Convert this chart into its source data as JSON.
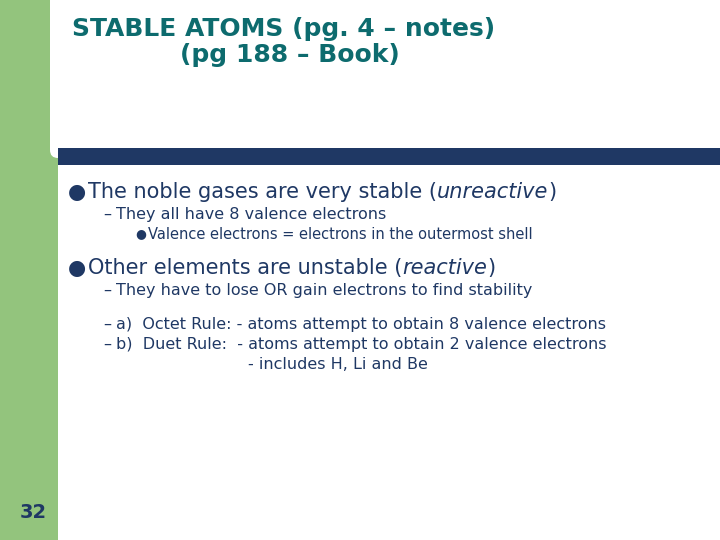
{
  "bg_color": "#ffffff",
  "green_color": "#93c47d",
  "navy_color": "#1f3864",
  "title_color": "#0d6b6e",
  "body_color": "#1f3864",
  "title_line1": "STABLE ATOMS (pg. 4 – notes)",
  "title_line2": "(pg 188 – Book)",
  "b1_pre": "The noble gases are very stable (",
  "b1_italic": "unreactive",
  "b1_post": ")",
  "sub1": "They all have 8 valence electrons",
  "subsub1": "Valence electrons = electrons in the outermost shell",
  "b2_pre": "Other elements are unstable (",
  "b2_italic": "reactive",
  "b2_post": ")",
  "sub2": "They have to lose OR gain electrons to find stability",
  "sub3a": "a)  Octet Rule: - atoms attempt to obtain 8 valence electrons",
  "sub3b": "b)  Duet Rule:  - atoms attempt to obtain 2 valence electrons",
  "sub3c": "- includes H, Li and Be",
  "page_num": "32",
  "title_fs": 18,
  "bullet_fs": 15,
  "sub_fs": 11.5,
  "subsub_fs": 10.5,
  "page_fs": 14
}
